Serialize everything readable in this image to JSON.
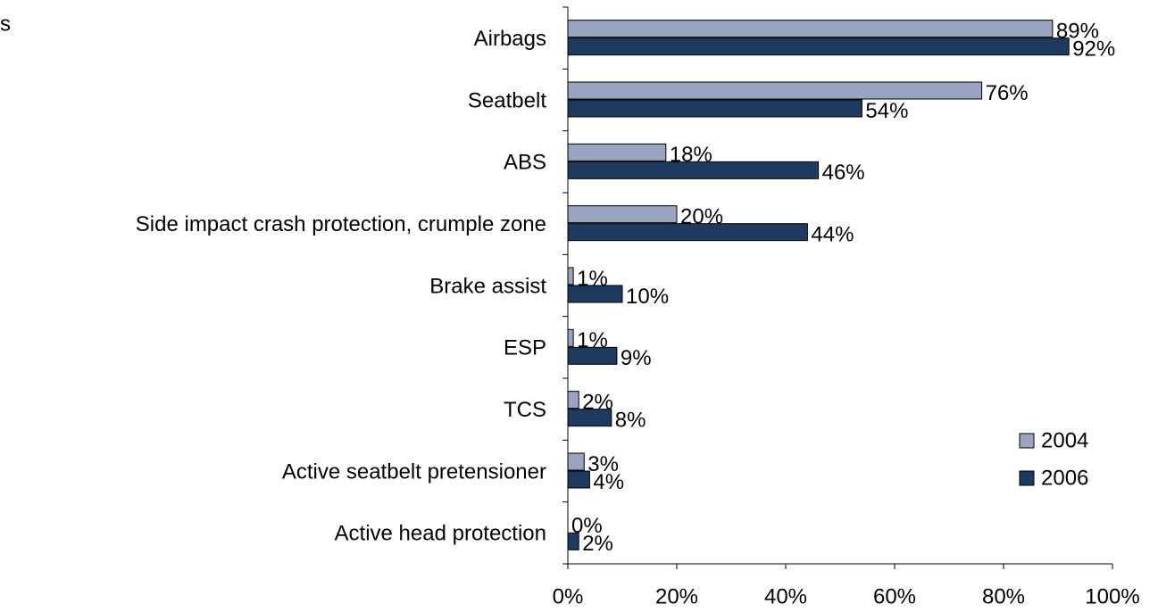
{
  "chart_data": {
    "type": "barh",
    "annotation": "s",
    "categories": [
      "Airbags",
      "Seatbelt",
      "ABS",
      "Side impact crash protection, crumple zone",
      "Brake assist",
      "ESP",
      "TCS",
      "Active seatbelt pretensioner",
      "Active head protection"
    ],
    "series": [
      {
        "name": "2004",
        "color": "#9aa3bf",
        "values": [
          89,
          76,
          18,
          20,
          1,
          1,
          2,
          3,
          0
        ],
        "value_labels": [
          "89%",
          "76%",
          "18%",
          "20%",
          "1%",
          "1%",
          "2%",
          "3%",
          "0%"
        ]
      },
      {
        "name": "2006",
        "color": "#1f3a5f",
        "values": [
          92,
          54,
          46,
          44,
          10,
          9,
          8,
          4,
          2
        ],
        "value_labels": [
          "92%",
          "54%",
          "46%",
          "44%",
          "10%",
          "9%",
          "8%",
          "4%",
          "2%"
        ]
      }
    ],
    "xlim": [
      0,
      100
    ],
    "xticks": [
      {
        "value": 0,
        "label": "0%"
      },
      {
        "value": 20,
        "label": "20%"
      },
      {
        "value": 40,
        "label": "40%"
      },
      {
        "value": 60,
        "label": "60%"
      },
      {
        "value": 80,
        "label": "80%"
      },
      {
        "value": 100,
        "label": "100%"
      }
    ],
    "legend": "lower right"
  }
}
